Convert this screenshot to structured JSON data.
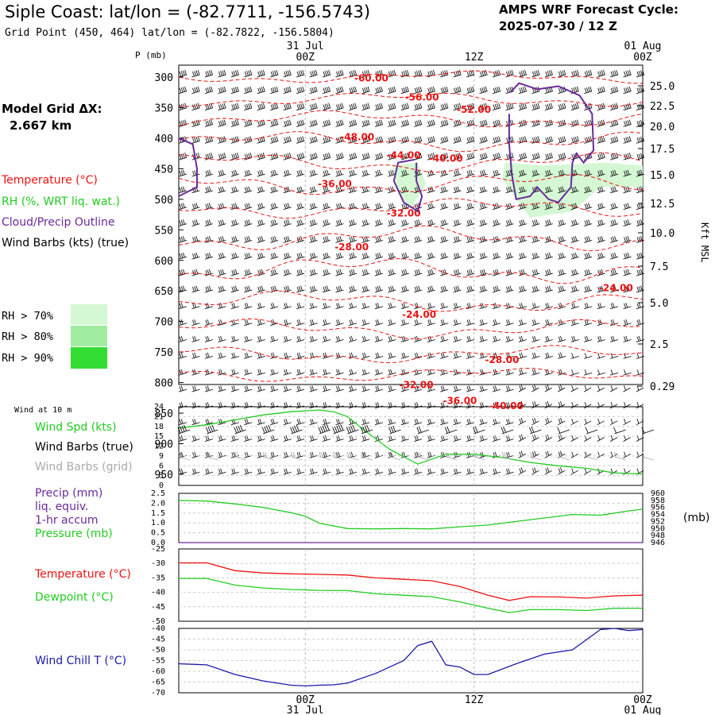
{
  "header": {
    "title": "Siple Coast:  lat/lon = (-82.7711, -156.5743)",
    "subtitle": "Grid Point (450, 464) lat/lon = (-82.7822, -156.5804)",
    "cycle_line1": "AMPS WRF Forecast Cycle:",
    "cycle_line2": "2025-07-30 / 12  Z"
  },
  "side": {
    "grid_label": "Model Grid ΔX:",
    "grid_value": "2.667 km",
    "temperature": "Temperature (°C)",
    "rh": "RH (%, WRT liq. wat.)",
    "cloud": "Cloud/Precip Outline",
    "barbs": "Wind Barbs (kts) (true)",
    "rh70": "RH > 70%",
    "rh80": "RH > 80%",
    "rh90": "RH > 90%",
    "wind10m": "Wind at 10 m",
    "wind_spd": "Wind Spd (kts)",
    "barbs_true": "Wind Barbs (true)",
    "barbs_grid": "Wind Barbs (grid)",
    "precip1": "Precip (mm)",
    "precip2": "liq. equiv.",
    "precip3": "1-hr accum",
    "pressure": "Pressure (mb)",
    "pressure_unit": "(mb)",
    "temp2": "Temperature (°C)",
    "dewpoint": "Dewpoint (°C)",
    "windchill": "Wind Chill T (°C)",
    "kft": "Kft MSL",
    "p_mb": "P (mb)"
  },
  "colors": {
    "temperature": "#ee1111",
    "cloud": "#6a2a9a",
    "rh70": "#d4f8d4",
    "rh80": "#a2eca2",
    "rh90": "#33dd33",
    "green": "#22cc22",
    "gray": "#aaaaaa",
    "blue": "#1a1aaa"
  },
  "time_axis": {
    "top": [
      {
        "t": 12,
        "line1": "31 Jul",
        "line2": "00Z"
      },
      {
        "t": 24,
        "line1": "",
        "line2": "12Z"
      },
      {
        "t": 36,
        "line1": "01 Aug",
        "line2": "00Z"
      }
    ],
    "bottom": [
      {
        "t": 12,
        "line1": "00Z",
        "line2": "31 Jul"
      },
      {
        "t": 24,
        "line1": "12Z",
        "line2": ""
      },
      {
        "t": 36,
        "line1": "00Z",
        "line2": "01 Aug"
      }
    ]
  },
  "chart_data": [
    {
      "type": "heatmap",
      "name": "vertical cross-section",
      "x_unit": "forecast hours from 2025-07-30 12Z",
      "xlim": [
        3,
        36
      ],
      "pressure_levels": [
        300,
        350,
        400,
        450,
        500,
        550,
        600,
        650,
        700,
        750,
        800,
        850,
        900,
        950
      ],
      "height_ticks_kft": [
        "25.0",
        "22.5",
        "20.0",
        "17.5",
        "15.0",
        "12.5",
        "10.0",
        "7.5",
        "5.0",
        "2.5",
        "0.29"
      ],
      "isotherm_labels": [
        {
          "text": "-60.00",
          "t": 16.7,
          "p": 302
        },
        {
          "text": "-56.00",
          "t": 20.3,
          "p": 333
        },
        {
          "text": "-52.00",
          "t": 24.0,
          "p": 353
        },
        {
          "text": "-48.00",
          "t": 15.7,
          "p": 398
        },
        {
          "text": "-44.00",
          "t": 19.0,
          "p": 428
        },
        {
          "text": "-40.00",
          "t": 22.0,
          "p": 433
        },
        {
          "text": "-36.00",
          "t": 14.1,
          "p": 475
        },
        {
          "text": "-32.00",
          "t": 19.0,
          "p": 523
        },
        {
          "text": "-28.00",
          "t": 15.3,
          "p": 578
        },
        {
          "text": "-24.00",
          "t": 34.1,
          "p": 645
        },
        {
          "text": "-24.00",
          "t": 20.1,
          "p": 689
        },
        {
          "text": "-28.00",
          "t": 26.0,
          "p": 763
        },
        {
          "text": "-32.00",
          "t": 19.9,
          "p": 804
        },
        {
          "text": "-36.00",
          "t": 23.0,
          "p": 830
        },
        {
          "text": "-40.00",
          "t": 26.3,
          "p": 838
        }
      ],
      "rh_regions": [
        {
          "level": ">70%",
          "polygon": [
            [
              18.2,
              445
            ],
            [
              20.0,
              440
            ],
            [
              20.6,
              475
            ],
            [
              19.5,
              515
            ],
            [
              18.6,
              490
            ]
          ]
        },
        {
          "level": ">70%",
          "polygon": [
            [
              26.2,
              440
            ],
            [
              29.0,
              445
            ],
            [
              33.5,
              440
            ],
            [
              36.0,
              445
            ],
            [
              36.0,
              480
            ],
            [
              33.0,
              480
            ],
            [
              31.0,
              520
            ],
            [
              28.0,
              530
            ],
            [
              27.0,
              500
            ],
            [
              26.0,
              465
            ]
          ]
        }
      ],
      "cloud_outlines": [
        {
          "points": [
            [
              3.0,
              400
            ],
            [
              4.0,
              410
            ],
            [
              4.3,
              450
            ],
            [
              4.3,
              480
            ],
            [
              3.0,
              495
            ]
          ]
        },
        {
          "points": [
            [
              19.8,
              435
            ],
            [
              18.6,
              440
            ],
            [
              18.3,
              470
            ],
            [
              19.0,
              505
            ],
            [
              20.0,
              520
            ],
            [
              20.3,
              495
            ],
            [
              19.9,
              470
            ],
            [
              19.9,
              440
            ]
          ]
        },
        {
          "points": [
            [
              26.6,
              325
            ],
            [
              27.2,
              310
            ],
            [
              28.5,
              320
            ],
            [
              30.0,
              315
            ],
            [
              31.5,
              330
            ],
            [
              32.4,
              360
            ],
            [
              32.5,
              420
            ],
            [
              31.8,
              440
            ],
            [
              31.3,
              425
            ],
            [
              31.0,
              440
            ],
            [
              30.9,
              480
            ],
            [
              30.0,
              505
            ],
            [
              29.3,
              500
            ],
            [
              28.5,
              480
            ],
            [
              28.0,
              495
            ],
            [
              27.0,
              500
            ],
            [
              26.7,
              460
            ],
            [
              26.5,
              410
            ],
            [
              26.5,
              360
            ]
          ]
        }
      ]
    },
    {
      "type": "line",
      "name": "wind at 10 m",
      "ylim": [
        0,
        24
      ],
      "yticks": [
        "0",
        "3",
        "6",
        "9",
        "12",
        "15",
        "18",
        "21",
        "24"
      ],
      "x": [
        3,
        5,
        7,
        9,
        11,
        13,
        14,
        15,
        16,
        18,
        20,
        22,
        24,
        26,
        28,
        30,
        32,
        34,
        36
      ],
      "series": [
        {
          "name": "Wind Spd (kts)",
          "values": [
            17.5,
            18.5,
            20,
            21.5,
            22.5,
            23,
            22.5,
            21,
            17.5,
            11,
            6.5,
            9.5,
            9.5,
            8.5,
            7,
            6,
            5.2,
            3.8,
            3.5
          ]
        }
      ],
      "barbs_true_speed": [
        18,
        18,
        20,
        20,
        22,
        23,
        23,
        22,
        19,
        15,
        10,
        10,
        10,
        9,
        8,
        7,
        6,
        5,
        4
      ],
      "barbs_grid_speed": [
        6,
        6,
        6,
        6,
        6,
        6,
        6,
        6,
        6,
        6,
        6,
        6,
        6,
        5,
        5,
        5,
        4,
        4,
        4
      ]
    },
    {
      "type": "line",
      "name": "precip and pressure",
      "ylim": [
        0,
        2.5
      ],
      "yticks_left": [
        "0.0",
        "0.5",
        "1.0",
        "1.5",
        "2.0",
        "2.5"
      ],
      "y2lim": [
        946,
        960
      ],
      "yticks_right": [
        "946",
        "948",
        "950",
        "952",
        "954",
        "956",
        "958",
        "960"
      ],
      "x": [
        3,
        5,
        7,
        9,
        11,
        12,
        13,
        15,
        17,
        19,
        21,
        23,
        25,
        27,
        29,
        31,
        33,
        35,
        36
      ],
      "series": [
        {
          "name": "Pressure (mb)",
          "axis": "right",
          "values": [
            958.0,
            957.8,
            957.0,
            956.0,
            954.5,
            953.5,
            951.5,
            950.0,
            949.9,
            950.0,
            949.9,
            950.5,
            951.0,
            952.0,
            953.0,
            954.0,
            953.8,
            955.0,
            955.5
          ]
        },
        {
          "name": "Precip (mm)",
          "axis": "left",
          "values": [
            0,
            0,
            0,
            0,
            0,
            0,
            0,
            0,
            0,
            0,
            0,
            0,
            0,
            0,
            0,
            0,
            0,
            0,
            0
          ]
        }
      ]
    },
    {
      "type": "line",
      "name": "temperature and dewpoint",
      "ylim": [
        -50,
        -25
      ],
      "yticks": [
        "-50",
        "-45",
        "-40",
        "-35",
        "-30",
        "-25"
      ],
      "x": [
        3,
        5,
        7,
        9,
        11,
        13,
        15,
        17,
        19,
        21,
        23,
        25,
        26.5,
        28,
        30,
        32,
        34,
        36
      ],
      "series": [
        {
          "name": "Temperature (°C)",
          "values": [
            -29.8,
            -29.8,
            -32.5,
            -33.3,
            -33.6,
            -33.8,
            -34.0,
            -35.0,
            -35.5,
            -36.0,
            -38.0,
            -41.0,
            -42.8,
            -41.5,
            -41.6,
            -42.0,
            -41.2,
            -41.0
          ]
        },
        {
          "name": "Dewpoint (°C)",
          "values": [
            -35.2,
            -35.2,
            -37.5,
            -38.5,
            -39.0,
            -39.3,
            -39.4,
            -40.5,
            -41.0,
            -41.5,
            -43.3,
            -45.5,
            -47.0,
            -46.0,
            -46.0,
            -46.3,
            -45.5,
            -45.5
          ]
        }
      ]
    },
    {
      "type": "line",
      "name": "wind chill",
      "ylim": [
        -70,
        -40
      ],
      "yticks": [
        "-70",
        "-65",
        "-60",
        "-55",
        "-50",
        "-45",
        "-40"
      ],
      "x": [
        3,
        5,
        7,
        9,
        11,
        12,
        13,
        14,
        15,
        17,
        19,
        20,
        21,
        22,
        23,
        24,
        25,
        27,
        29,
        31,
        33,
        34,
        35,
        36
      ],
      "series": [
        {
          "name": "Wind Chill T (°C)",
          "values": [
            -56.5,
            -57,
            -61.5,
            -64.5,
            -66.5,
            -66.8,
            -66.5,
            -66.3,
            -65.5,
            -61,
            -55,
            -48,
            -46,
            -57,
            -58,
            -61.5,
            -61.5,
            -56.5,
            -52,
            -50,
            -40.5,
            -40,
            -41,
            -40.5
          ]
        }
      ]
    }
  ]
}
